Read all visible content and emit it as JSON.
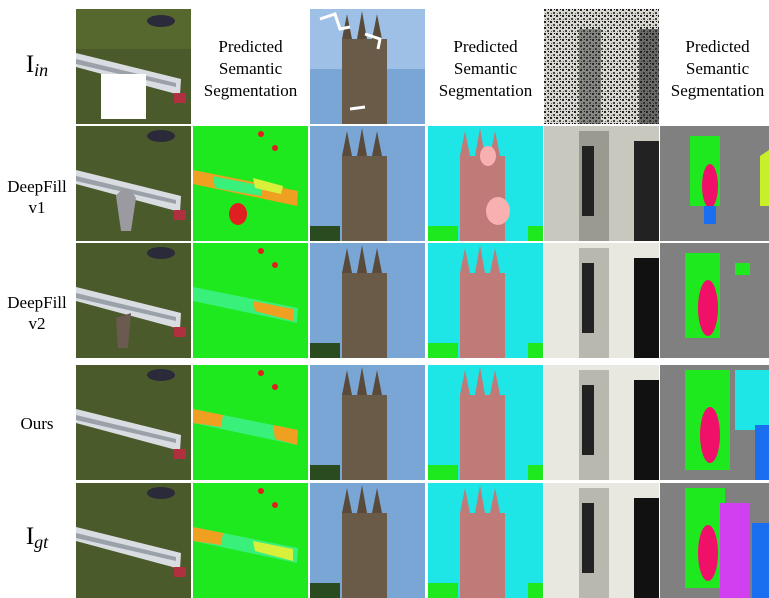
{
  "figure": {
    "row_labels": {
      "input_main": "I",
      "input_sub": "in",
      "deepfill_v1": [
        "DeepFill",
        "v1"
      ],
      "deepfill_v2": [
        "DeepFill",
        "v2"
      ],
      "ours": "Ours",
      "gt_main": "I",
      "gt_sub": "gt"
    },
    "column_header": [
      "Predicted",
      "Semantic",
      "Segmentation"
    ],
    "colors": {
      "grass": "#4a5a2a",
      "seg_green": "#1ee81e",
      "seg_orange": "#f0a020",
      "seg_light_green": "#38f07a",
      "seg_yellow": "#d8f03a",
      "seg_red": "#e02020",
      "sky": "#7aa6d6",
      "seg_cyan": "#1ee6e6",
      "seg_tower": "#c07a78",
      "seg_pink": "#f8b0b0",
      "seg_gray": "#808080",
      "seg_magenta": "#f0106a",
      "seg_blue": "#1a6ef0",
      "seg_lime": "#c8f028",
      "seg_purple": "#d040f0",
      "white": "#ffffff"
    }
  }
}
